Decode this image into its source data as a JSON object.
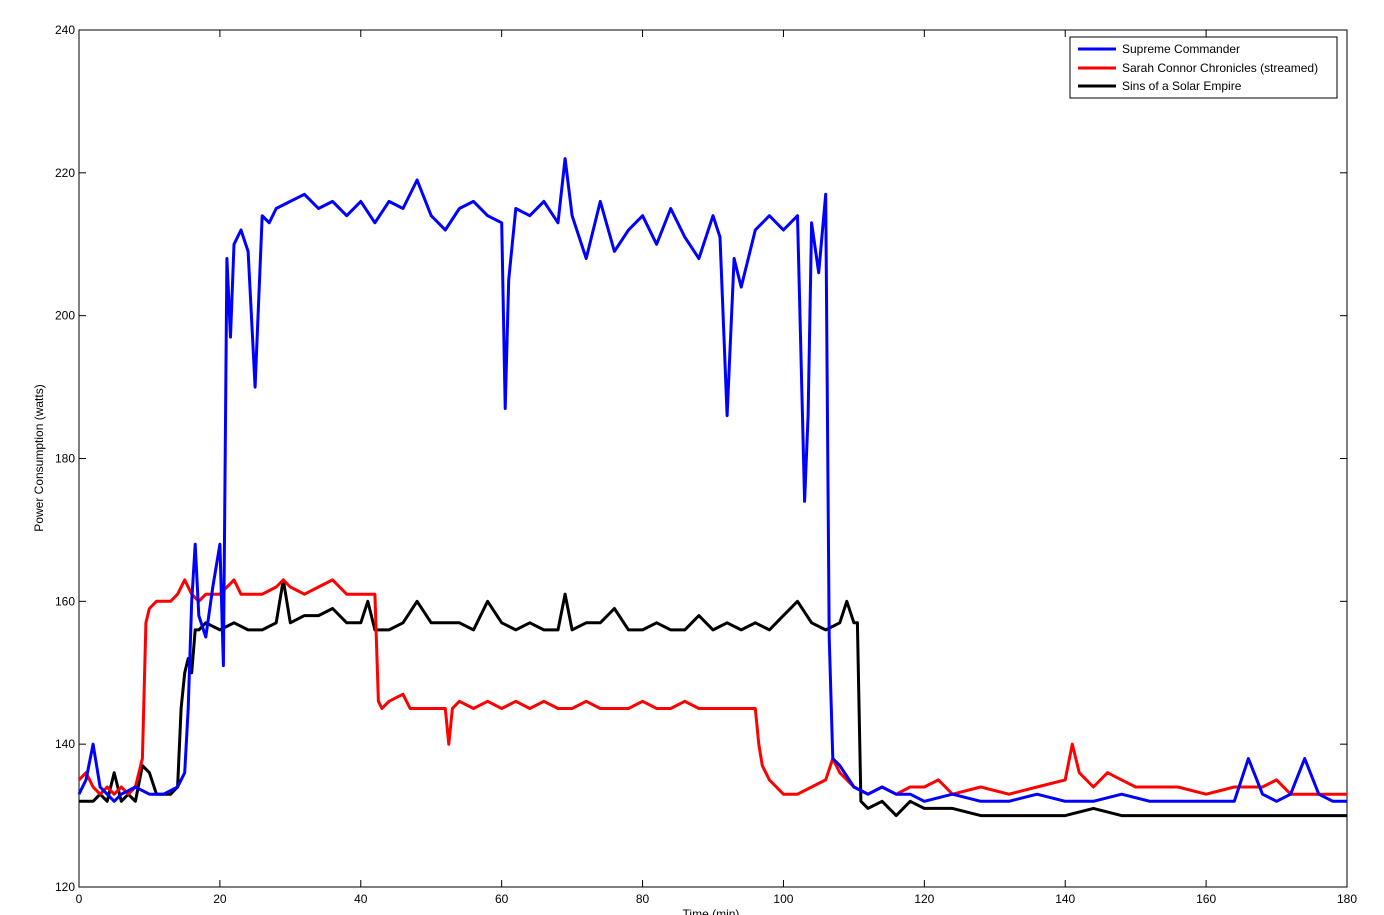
{
  "chart_data": {
    "type": "line",
    "title": "",
    "xlabel": "Time (min)",
    "ylabel": "Power Consumption (watts)",
    "xlim": [
      0,
      180
    ],
    "ylim": [
      120,
      240
    ],
    "xticks": [
      0,
      20,
      40,
      60,
      80,
      100,
      120,
      140,
      160,
      180
    ],
    "yticks": [
      120,
      140,
      160,
      180,
      200,
      220,
      240
    ],
    "grid": false,
    "legend_position": "top-right",
    "series": [
      {
        "name": "Supreme Commander",
        "color": "#0000ff",
        "x": [
          0,
          1,
          2,
          3,
          4,
          5,
          6,
          8,
          10,
          12,
          14,
          15,
          15.5,
          16,
          16.5,
          17,
          18,
          19,
          20,
          20.5,
          21,
          21.5,
          22,
          23,
          24,
          25,
          26,
          27,
          28,
          30,
          32,
          34,
          36,
          38,
          40,
          42,
          44,
          46,
          48,
          50,
          52,
          54,
          56,
          58,
          60,
          60.5,
          61,
          62,
          64,
          66,
          68,
          69,
          70,
          72,
          74,
          76,
          78,
          80,
          82,
          84,
          86,
          88,
          90,
          91,
          92,
          93,
          94,
          96,
          98,
          100,
          102,
          103,
          103.5,
          104,
          105,
          106,
          106.5,
          107,
          108,
          110,
          112,
          114,
          116,
          118,
          120,
          124,
          128,
          132,
          136,
          140,
          144,
          148,
          152,
          156,
          160,
          164,
          166,
          168,
          170,
          172,
          174,
          176,
          178,
          180
        ],
        "y": [
          133,
          135,
          140,
          134,
          133,
          132,
          133,
          134,
          133,
          133,
          134,
          136,
          145,
          160,
          168,
          158,
          155,
          162,
          168,
          151,
          208,
          197,
          210,
          212,
          209,
          190,
          214,
          213,
          215,
          216,
          217,
          215,
          216,
          214,
          216,
          213,
          216,
          215,
          219,
          214,
          212,
          215,
          216,
          214,
          213,
          187,
          205,
          215,
          214,
          216,
          213,
          222,
          214,
          208,
          216,
          209,
          212,
          214,
          210,
          215,
          211,
          208,
          214,
          211,
          186,
          208,
          204,
          212,
          214,
          212,
          214,
          174,
          186,
          213,
          206,
          217,
          155,
          138,
          137,
          134,
          133,
          134,
          133,
          133,
          132,
          133,
          132,
          132,
          133,
          132,
          132,
          133,
          132,
          132,
          132,
          132,
          138,
          133,
          132,
          133,
          138,
          133,
          132,
          132
        ]
      },
      {
        "name": "Sarah Connor Chronicles (streamed)",
        "color": "#ff0000",
        "x": [
          0,
          1,
          2,
          3,
          4,
          5,
          6,
          7,
          8,
          8.5,
          9,
          9.5,
          10,
          11,
          12,
          13,
          14,
          15,
          16,
          17,
          18,
          20,
          22,
          23,
          24,
          26,
          28,
          29,
          30,
          32,
          34,
          36,
          37,
          38,
          40,
          41,
          42,
          42.5,
          43,
          44,
          46,
          47,
          48,
          50,
          52,
          52.5,
          53,
          54,
          56,
          58,
          60,
          62,
          64,
          66,
          68,
          70,
          72,
          74,
          76,
          78,
          80,
          82,
          84,
          86,
          88,
          90,
          92,
          94,
          95,
          96,
          96.5,
          97,
          98,
          100,
          102,
          104,
          106,
          107,
          108,
          110,
          112,
          114,
          116,
          118,
          120,
          122,
          124,
          128,
          132,
          136,
          140,
          141,
          142,
          144,
          146,
          148,
          150,
          152,
          156,
          160,
          164,
          168,
          170,
          172,
          176,
          180
        ],
        "y": [
          135,
          136,
          134,
          133,
          134,
          133,
          134,
          133,
          134,
          136,
          138,
          157,
          159,
          160,
          160,
          160,
          161,
          163,
          161,
          160,
          161,
          161,
          163,
          161,
          161,
          161,
          162,
          163,
          162,
          161,
          162,
          163,
          162,
          161,
          161,
          161,
          161,
          146,
          145,
          146,
          147,
          145,
          145,
          145,
          145,
          140,
          145,
          146,
          145,
          146,
          145,
          146,
          145,
          146,
          145,
          145,
          146,
          145,
          145,
          145,
          146,
          145,
          145,
          146,
          145,
          145,
          145,
          145,
          145,
          145,
          140,
          137,
          135,
          133,
          133,
          134,
          135,
          138,
          136,
          134,
          133,
          134,
          133,
          134,
          134,
          135,
          133,
          134,
          133,
          134,
          135,
          140,
          136,
          134,
          136,
          135,
          134,
          134,
          134,
          133,
          134,
          134,
          135,
          133,
          133,
          133
        ]
      },
      {
        "name": "Sins of a Solar Empire",
        "color": "#000000",
        "x": [
          0,
          1,
          2,
          3,
          4,
          5,
          6,
          7,
          8,
          9,
          10,
          11,
          12,
          13,
          14,
          14.5,
          15,
          15.5,
          16,
          16.5,
          17,
          18,
          20,
          22,
          24,
          26,
          28,
          29,
          30,
          32,
          34,
          36,
          38,
          40,
          41,
          42,
          44,
          46,
          48,
          50,
          52,
          54,
          56,
          58,
          60,
          62,
          64,
          66,
          68,
          69,
          70,
          72,
          74,
          76,
          78,
          80,
          82,
          84,
          86,
          88,
          90,
          92,
          94,
          96,
          98,
          100,
          102,
          104,
          106,
          108,
          109,
          110,
          110.5,
          111,
          112,
          114,
          116,
          118,
          120,
          124,
          128,
          132,
          136,
          140,
          144,
          148,
          152,
          156,
          160,
          164,
          168,
          172,
          176,
          180
        ],
        "y": [
          132,
          132,
          132,
          133,
          132,
          136,
          132,
          133,
          132,
          137,
          136,
          133,
          133,
          133,
          134,
          145,
          150,
          152,
          150,
          156,
          156,
          157,
          156,
          157,
          156,
          156,
          157,
          163,
          157,
          158,
          158,
          159,
          157,
          157,
          160,
          156,
          156,
          157,
          160,
          157,
          157,
          157,
          156,
          160,
          157,
          156,
          157,
          156,
          156,
          161,
          156,
          157,
          157,
          159,
          156,
          156,
          157,
          156,
          156,
          158,
          156,
          157,
          156,
          157,
          156,
          158,
          160,
          157,
          156,
          157,
          160,
          157,
          157,
          132,
          131,
          132,
          130,
          132,
          131,
          131,
          130,
          130,
          130,
          130,
          131,
          130,
          130,
          130,
          130,
          130,
          130,
          130,
          130,
          130
        ]
      }
    ]
  }
}
